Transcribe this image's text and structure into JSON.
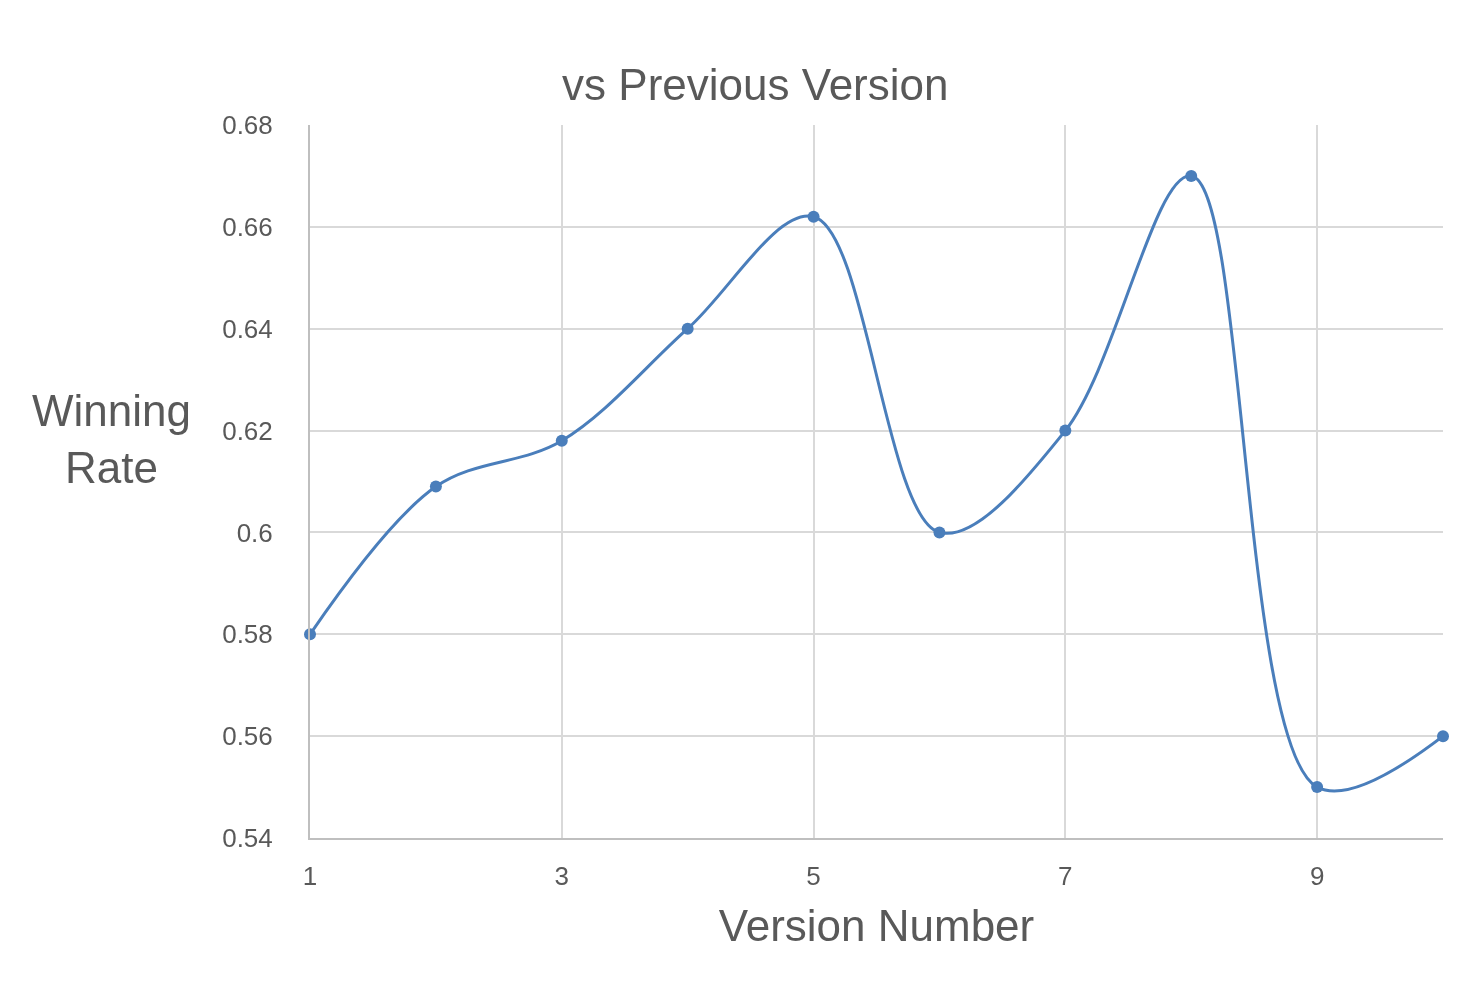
{
  "chart_data": {
    "type": "line",
    "title": "vs Previous Version",
    "xlabel": "Version Number",
    "ylabel": "Winning Rate",
    "x": [
      1,
      2,
      3,
      4,
      5,
      6,
      7,
      8,
      9,
      10
    ],
    "series": [
      {
        "color": "#4a7ebb",
        "values": [
          0.58,
          0.609,
          0.618,
          0.64,
          0.662,
          0.6,
          0.62,
          0.67,
          0.55,
          0.56
        ]
      }
    ],
    "xlim": [
      1,
      10
    ],
    "xticks": [
      1,
      3,
      5,
      7,
      9
    ],
    "ylim": [
      0.54,
      0.68
    ],
    "yticks": [
      0.54,
      0.56,
      0.58,
      0.6,
      0.62,
      0.64,
      0.66,
      0.68
    ],
    "grid": true,
    "marker": "circle",
    "line_style": "solid"
  }
}
